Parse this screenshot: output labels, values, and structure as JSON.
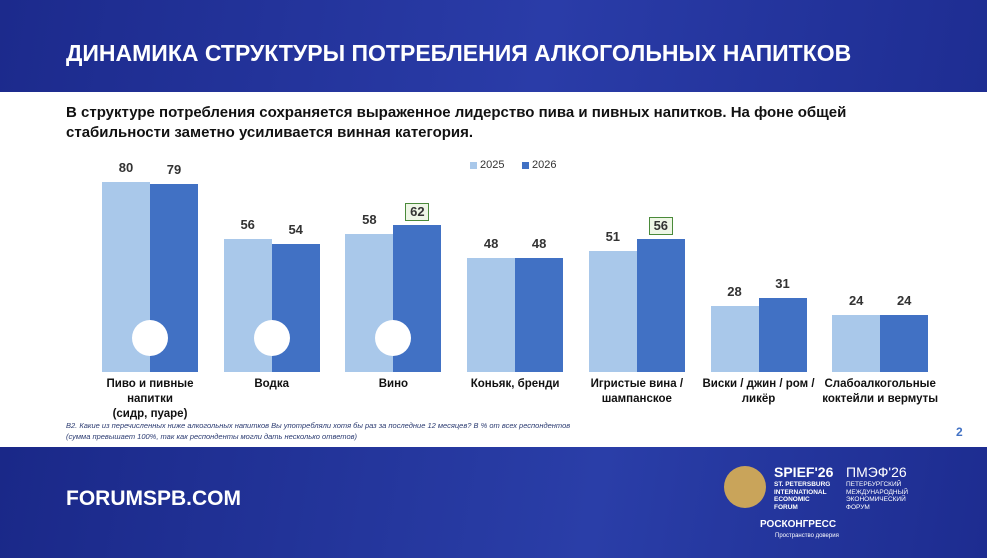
{
  "header": {
    "title": "ДИНАМИКА СТРУКТУРЫ ПОТРЕБЛЕНИЯ АЛКОГОЛЬНЫХ НАПИТКОВ"
  },
  "subtitle": "В структуре потребления сохраняется выраженное лидерство пива и пивных напитков. На фоне общей\nстабильности заметно усиливается винная категория.",
  "chart_data": {
    "type": "bar",
    "categories": [
      "Пиво и пивные напитки\n(сидр, пуаре)",
      "Водка",
      "Вино",
      "Коньяк, бренди",
      "Игристые вина /\nшампанское",
      "Виски / джин / ром /\nликёр",
      "Слабоалкогольные\nкоктейли и вермуты"
    ],
    "series": [
      {
        "name": "2025",
        "color": "#a9c8ea",
        "values": [
          80,
          56,
          58,
          48,
          51,
          28,
          24
        ],
        "boxed": [
          false,
          false,
          false,
          false,
          false,
          false,
          false
        ]
      },
      {
        "name": "2026",
        "color": "#4171c4",
        "values": [
          79,
          54,
          62,
          48,
          56,
          31,
          24
        ],
        "boxed": [
          false,
          false,
          true,
          false,
          true,
          false,
          false
        ]
      }
    ],
    "legend": "top"
  },
  "footnote": "B2. Какие из перечисленных ниже алкогольных напитков Вы употребляли хотя бы раз за последние 12 месяцев? В % от всех респондентов\n(сумма превышает 100%, так как респонденты могли дать несколько ответов)",
  "page_number": 2,
  "footer": {
    "site": "FORUMSPB.COM",
    "spief": "SPIEF'26",
    "spief_sub": "ST. PETERSBURG\nINTERNATIONAL\nECONOMIC\nFORUM",
    "pmef": "ПМЭФ'26",
    "pmef_sub": "ПЕТЕРБУРГСКИЙ\nМЕЖДУНАРОДНЫЙ\nЭКОНОМИЧЕСКИЙ\nФОРУМ",
    "roscongress": "РОСКОНГРЕСС",
    "motto": "Пространство доверия"
  }
}
